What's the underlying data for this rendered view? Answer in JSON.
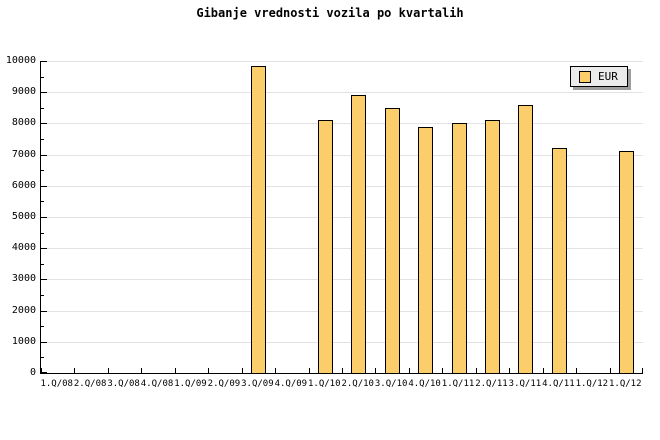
{
  "chart_data": {
    "type": "bar",
    "title": "Gibanje vrednosti vozila po kvartalih",
    "categories": [
      "1.Q/08",
      "2.Q/08",
      "3.Q/08",
      "4.Q/08",
      "1.Q/09",
      "2.Q/09",
      "3.Q/09",
      "4.Q/09",
      "1.Q/10",
      "2.Q/10",
      "3.Q/10",
      "4.Q/10",
      "1.Q/11",
      "2.Q/11",
      "3.Q/11",
      "4.Q/11",
      "1.Q/12",
      "1.Q/12"
    ],
    "series": [
      {
        "name": "EUR",
        "values": [
          null,
          null,
          null,
          null,
          null,
          null,
          9850,
          null,
          8100,
          8900,
          8500,
          7900,
          8000,
          8100,
          8600,
          7200,
          null,
          7100
        ]
      }
    ],
    "xlabel": "",
    "ylabel": "",
    "ylim": [
      0,
      10000
    ],
    "yticks": [
      0,
      1000,
      2000,
      3000,
      4000,
      5000,
      6000,
      7000,
      8000,
      9000,
      10000
    ],
    "y_minor_tick_step": 500,
    "grid": "horizontal-major",
    "legend_position": "top-right",
    "colors": {
      "bar_fill": "#FCCE6B",
      "bar_border": "#000000",
      "gridline": "#E2E2E2",
      "axis": "#000000",
      "background": "#FFFFFF",
      "legend_background": "#EBEBEB",
      "legend_shadow": "#9E9E9E"
    }
  }
}
